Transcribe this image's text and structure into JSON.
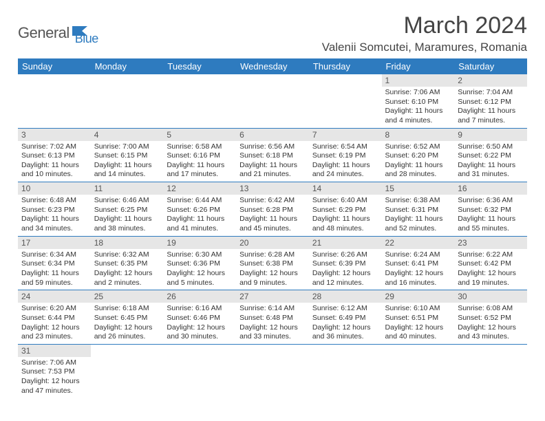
{
  "logo": {
    "text1": "General",
    "text2": "Blue"
  },
  "title": "March 2024",
  "location": "Valenii Somcutei, Maramures, Romania",
  "colors": {
    "header_bg": "#2e7bbf",
    "daynum_bg": "#e6e6e6",
    "border": "#2e7bbf"
  },
  "weekdays": [
    "Sunday",
    "Monday",
    "Tuesday",
    "Wednesday",
    "Thursday",
    "Friday",
    "Saturday"
  ],
  "weeks": [
    [
      null,
      null,
      null,
      null,
      null,
      {
        "n": "1",
        "sr": "7:06 AM",
        "ss": "6:10 PM",
        "dl": "11 hours and 4 minutes."
      },
      {
        "n": "2",
        "sr": "7:04 AM",
        "ss": "6:12 PM",
        "dl": "11 hours and 7 minutes."
      }
    ],
    [
      {
        "n": "3",
        "sr": "7:02 AM",
        "ss": "6:13 PM",
        "dl": "11 hours and 10 minutes."
      },
      {
        "n": "4",
        "sr": "7:00 AM",
        "ss": "6:15 PM",
        "dl": "11 hours and 14 minutes."
      },
      {
        "n": "5",
        "sr": "6:58 AM",
        "ss": "6:16 PM",
        "dl": "11 hours and 17 minutes."
      },
      {
        "n": "6",
        "sr": "6:56 AM",
        "ss": "6:18 PM",
        "dl": "11 hours and 21 minutes."
      },
      {
        "n": "7",
        "sr": "6:54 AM",
        "ss": "6:19 PM",
        "dl": "11 hours and 24 minutes."
      },
      {
        "n": "8",
        "sr": "6:52 AM",
        "ss": "6:20 PM",
        "dl": "11 hours and 28 minutes."
      },
      {
        "n": "9",
        "sr": "6:50 AM",
        "ss": "6:22 PM",
        "dl": "11 hours and 31 minutes."
      }
    ],
    [
      {
        "n": "10",
        "sr": "6:48 AM",
        "ss": "6:23 PM",
        "dl": "11 hours and 34 minutes."
      },
      {
        "n": "11",
        "sr": "6:46 AM",
        "ss": "6:25 PM",
        "dl": "11 hours and 38 minutes."
      },
      {
        "n": "12",
        "sr": "6:44 AM",
        "ss": "6:26 PM",
        "dl": "11 hours and 41 minutes."
      },
      {
        "n": "13",
        "sr": "6:42 AM",
        "ss": "6:28 PM",
        "dl": "11 hours and 45 minutes."
      },
      {
        "n": "14",
        "sr": "6:40 AM",
        "ss": "6:29 PM",
        "dl": "11 hours and 48 minutes."
      },
      {
        "n": "15",
        "sr": "6:38 AM",
        "ss": "6:31 PM",
        "dl": "11 hours and 52 minutes."
      },
      {
        "n": "16",
        "sr": "6:36 AM",
        "ss": "6:32 PM",
        "dl": "11 hours and 55 minutes."
      }
    ],
    [
      {
        "n": "17",
        "sr": "6:34 AM",
        "ss": "6:34 PM",
        "dl": "11 hours and 59 minutes."
      },
      {
        "n": "18",
        "sr": "6:32 AM",
        "ss": "6:35 PM",
        "dl": "12 hours and 2 minutes."
      },
      {
        "n": "19",
        "sr": "6:30 AM",
        "ss": "6:36 PM",
        "dl": "12 hours and 5 minutes."
      },
      {
        "n": "20",
        "sr": "6:28 AM",
        "ss": "6:38 PM",
        "dl": "12 hours and 9 minutes."
      },
      {
        "n": "21",
        "sr": "6:26 AM",
        "ss": "6:39 PM",
        "dl": "12 hours and 12 minutes."
      },
      {
        "n": "22",
        "sr": "6:24 AM",
        "ss": "6:41 PM",
        "dl": "12 hours and 16 minutes."
      },
      {
        "n": "23",
        "sr": "6:22 AM",
        "ss": "6:42 PM",
        "dl": "12 hours and 19 minutes."
      }
    ],
    [
      {
        "n": "24",
        "sr": "6:20 AM",
        "ss": "6:44 PM",
        "dl": "12 hours and 23 minutes."
      },
      {
        "n": "25",
        "sr": "6:18 AM",
        "ss": "6:45 PM",
        "dl": "12 hours and 26 minutes."
      },
      {
        "n": "26",
        "sr": "6:16 AM",
        "ss": "6:46 PM",
        "dl": "12 hours and 30 minutes."
      },
      {
        "n": "27",
        "sr": "6:14 AM",
        "ss": "6:48 PM",
        "dl": "12 hours and 33 minutes."
      },
      {
        "n": "28",
        "sr": "6:12 AM",
        "ss": "6:49 PM",
        "dl": "12 hours and 36 minutes."
      },
      {
        "n": "29",
        "sr": "6:10 AM",
        "ss": "6:51 PM",
        "dl": "12 hours and 40 minutes."
      },
      {
        "n": "30",
        "sr": "6:08 AM",
        "ss": "6:52 PM",
        "dl": "12 hours and 43 minutes."
      }
    ],
    [
      {
        "n": "31",
        "sr": "7:06 AM",
        "ss": "7:53 PM",
        "dl": "12 hours and 47 minutes."
      },
      null,
      null,
      null,
      null,
      null,
      null
    ]
  ],
  "labels": {
    "sunrise": "Sunrise:",
    "sunset": "Sunset:",
    "daylight": "Daylight:"
  }
}
